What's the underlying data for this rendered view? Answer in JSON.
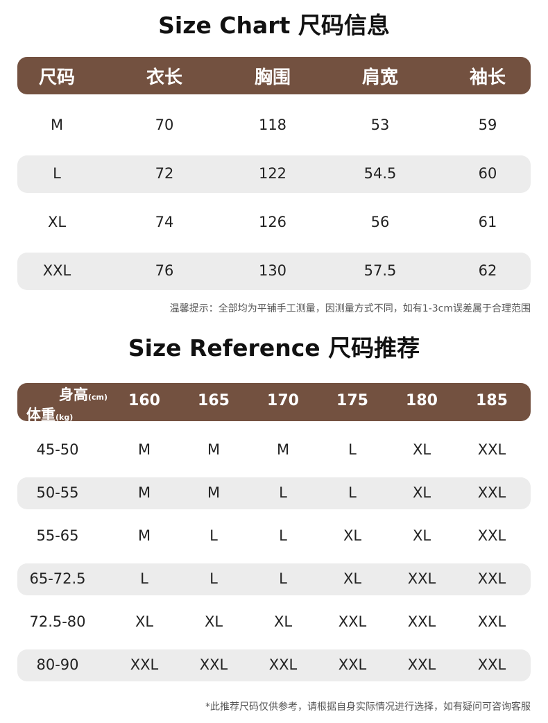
{
  "size_chart": {
    "title": "Size Chart 尺码信息",
    "headers": [
      "尺码",
      "衣长",
      "胸围",
      "肩宽",
      "袖长"
    ],
    "rows": [
      [
        "M",
        "70",
        "118",
        "53",
        "59"
      ],
      [
        "L",
        "72",
        "122",
        "54.5",
        "60"
      ],
      [
        "XL",
        "74",
        "126",
        "56",
        "61"
      ],
      [
        "XXL",
        "76",
        "130",
        "57.5",
        "62"
      ]
    ],
    "note": "温馨提示：全部均为平铺手工测量，因测量方式不同，如有1-3cm误差属于合理范围"
  },
  "size_reference": {
    "title": "Size Reference 尺码推荐",
    "corner_height_label": "身高",
    "corner_height_unit": "(cm)",
    "corner_weight_label": "体重",
    "corner_weight_unit": "(kg)",
    "heights": [
      "160",
      "165",
      "170",
      "175",
      "180",
      "185"
    ],
    "rows": [
      {
        "weight": "45-50",
        "sizes": [
          "M",
          "M",
          "M",
          "L",
          "XL",
          "XXL"
        ]
      },
      {
        "weight": "50-55",
        "sizes": [
          "M",
          "M",
          "L",
          "L",
          "XL",
          "XXL"
        ]
      },
      {
        "weight": "55-65",
        "sizes": [
          "M",
          "L",
          "L",
          "XL",
          "XL",
          "XXL"
        ]
      },
      {
        "weight": "65-72.5",
        "sizes": [
          "L",
          "L",
          "L",
          "XL",
          "XXL",
          "XXL"
        ]
      },
      {
        "weight": "72.5-80",
        "sizes": [
          "XL",
          "XL",
          "XL",
          "XXL",
          "XXL",
          "XXL"
        ]
      },
      {
        "weight": "80-90",
        "sizes": [
          "XXL",
          "XXL",
          "XXL",
          "XXL",
          "XXL",
          "XXL"
        ]
      }
    ],
    "note": "*此推荐尺码仅供参考，请根据自身实际情况进行选择，如有疑问可咨询客服"
  },
  "colors": {
    "header": "#735140",
    "stripe": "#ececec"
  }
}
